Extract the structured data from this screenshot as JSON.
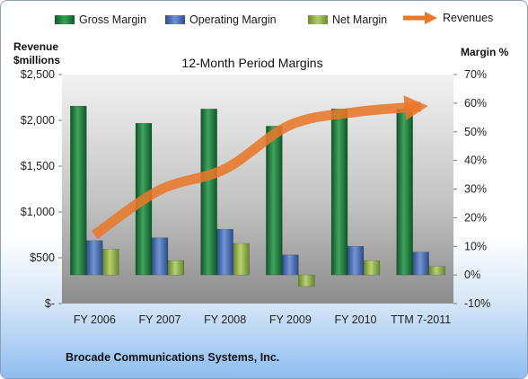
{
  "legend": {
    "gross": "Gross Margin",
    "operating": "Operating Margin",
    "net": "Net Margin",
    "revenues": "Revenues"
  },
  "titles": {
    "left_line1": "Revenue",
    "left_line2": "$millions",
    "right": "Margin %",
    "chart": "12-Month Period Margins",
    "company": "Brocade Communications Systems, Inc."
  },
  "colors": {
    "gross": "#1e7a3c",
    "operating": "#4a6fb0",
    "net": "#93b04a",
    "revenues": "#e8772a"
  },
  "chart_data": {
    "type": "bar",
    "title": "12-Month Period Margins",
    "categories": [
      "FY 2006",
      "FY 2007",
      "FY 2008",
      "FY 2009",
      "FY 2010",
      "TTM 7-2011"
    ],
    "series": [
      {
        "name": "Gross Margin",
        "axis": "right",
        "values": [
          59,
          53,
          58,
          52,
          58,
          58
        ]
      },
      {
        "name": "Operating Margin",
        "axis": "right",
        "values": [
          12,
          13,
          16,
          7,
          10,
          8
        ]
      },
      {
        "name": "Net Margin",
        "axis": "right",
        "values": [
          9,
          5,
          11,
          -4,
          5,
          3
        ]
      },
      {
        "name": "Revenues",
        "type": "line",
        "axis": "left",
        "values": [
          750,
          1240,
          1470,
          1950,
          2090,
          2150
        ]
      }
    ],
    "left_axis": {
      "label": "Revenue $millions",
      "ylim": [
        0,
        2500
      ],
      "ticks": [
        0,
        500,
        1000,
        1500,
        2000,
        2500
      ],
      "tick_labels": [
        "$-",
        "$500",
        "$1,000",
        "$1,500",
        "$2,000",
        "$2,500"
      ]
    },
    "right_axis": {
      "label": "Margin %",
      "ylim": [
        -10,
        70
      ],
      "ticks": [
        -10,
        0,
        10,
        20,
        30,
        40,
        50,
        60,
        70
      ],
      "tick_labels": [
        "-10%",
        "0%",
        "10%",
        "20%",
        "30%",
        "40%",
        "50%",
        "60%",
        "70%"
      ]
    },
    "grid": false,
    "legend_position": "top"
  }
}
